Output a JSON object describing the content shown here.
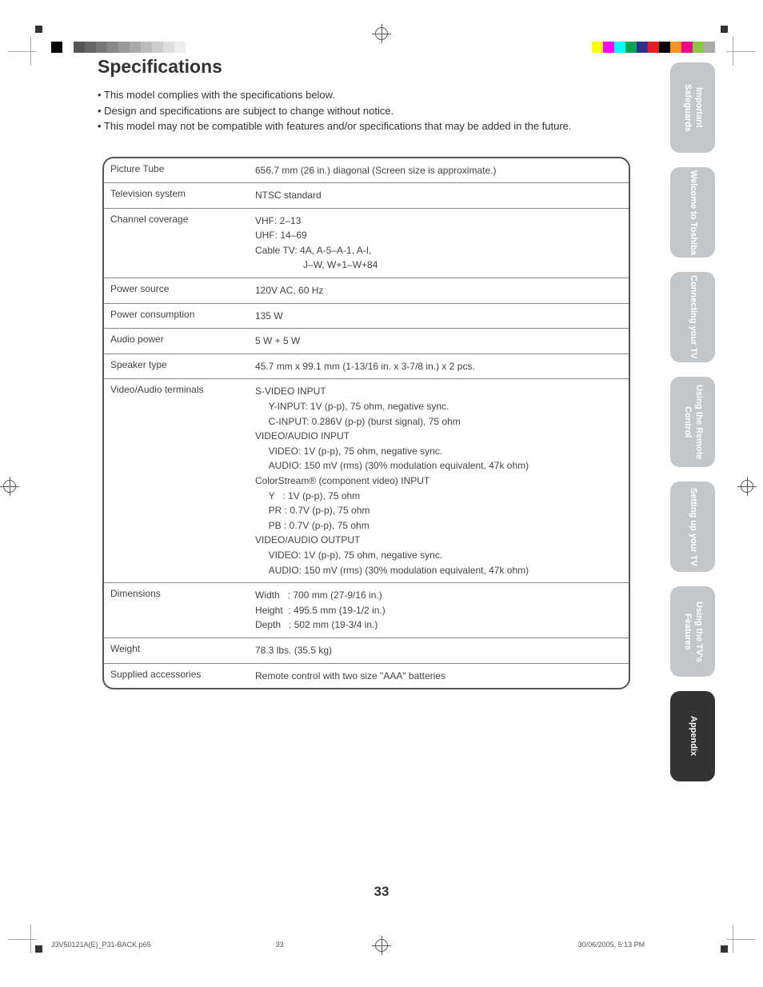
{
  "page": {
    "title": "Specifications",
    "bullets": [
      "• This model complies with the specifications below.",
      "• Design and specifications are subject to change without notice.",
      "• This model may not be compatible with features and/or specifications that may be added in the future."
    ],
    "page_number": "33"
  },
  "spec_rows": [
    {
      "label": "Picture Tube",
      "value": "656.7 mm (26 in.) diagonal (Screen size is approximate.)"
    },
    {
      "label": "Television system",
      "value": "NTSC standard"
    },
    {
      "label": "Channel coverage",
      "value": "VHF: 2–13\nUHF: 14–69\nCable TV: 4A, A-5–A-1, A-I,\n                  J–W, W+1–W+84"
    },
    {
      "label": "Power source",
      "value": "120V AC, 60 Hz"
    },
    {
      "label": "Power consumption",
      "value": "135 W"
    },
    {
      "label": "Audio power",
      "value": "5 W + 5 W"
    },
    {
      "label": "Speaker type",
      "value": "45.7 mm x 99.1 mm (1-13/16 in. x 3-7/8 in.) x 2 pcs."
    },
    {
      "label": "Video/Audio terminals",
      "value": "S-VIDEO INPUT\n     Y-INPUT: 1V (p-p), 75 ohm, negative sync.\n     C-INPUT: 0.286V (p-p) (burst signal), 75 ohm\nVIDEO/AUDIO INPUT\n     VIDEO: 1V (p-p), 75 ohm, negative sync.\n     AUDIO: 150 mV (rms) (30% modulation equivalent, 47k ohm)\nColorStream® (component video) INPUT\n     Y   : 1V (p-p), 75 ohm\n     PR : 0.7V (p-p), 75 ohm\n     PB : 0.7V (p-p), 75 ohm\nVIDEO/AUDIO OUTPUT\n     VIDEO: 1V (p-p), 75 ohm, negative sync.\n     AUDIO: 150 mV (rms) (30% modulation equivalent, 47k ohm)"
    },
    {
      "label": "Dimensions",
      "value": "Width   : 700 mm (27-9/16 in.)\nHeight  : 495.5 mm (19-1/2 in.)\nDepth   : 502 mm (19-3/4 in.)"
    },
    {
      "label": "Weight",
      "value": "78.3 lbs. (35.5 kg)"
    },
    {
      "label": "Supplied accessories",
      "value": "Remote control with two size \"AAA\" batteries"
    }
  ],
  "tabs": [
    {
      "label": "Important\nSafeguards",
      "active": false
    },
    {
      "label": "Welcome to\nToshiba",
      "active": false
    },
    {
      "label": "Connecting\nyour TV",
      "active": false
    },
    {
      "label": "Using the\nRemote Control",
      "active": false
    },
    {
      "label": "Setting up\nyour TV",
      "active": false
    },
    {
      "label": "Using the TV's\nFeatures",
      "active": false
    },
    {
      "label": "Appendix",
      "active": true
    }
  ],
  "footer": {
    "file": "J3V50121A(E)_P31-BACK.p65",
    "page": "33",
    "datetime": "30/06/2005, 5:13 PM"
  },
  "registration": {
    "left_swatches": [
      "#000000",
      "#ffffff",
      "#555555",
      "#666666",
      "#777777",
      "#888888",
      "#999999",
      "#aaaaaa",
      "#bbbbbb",
      "#cccccc",
      "#dddddd",
      "#eeeeee",
      "#ffffff"
    ],
    "right_swatches": [
      "#ffff00",
      "#ff00ff",
      "#00ffff",
      "#00a651",
      "#2e3192",
      "#ed1c24",
      "#000000",
      "#f7941d",
      "#ec008c",
      "#8dc63f",
      "#a7a9ac"
    ]
  }
}
